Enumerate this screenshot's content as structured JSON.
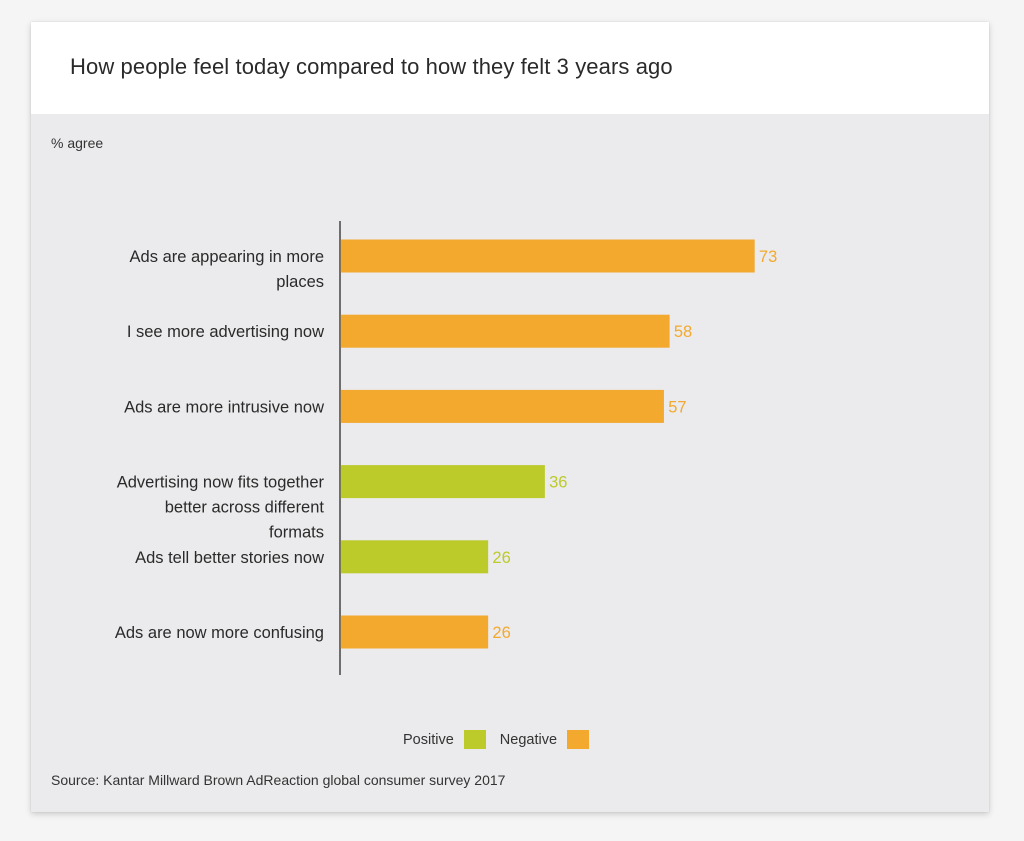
{
  "title": "How people feel today compared to how they felt 3 years ago",
  "unit_label": "% agree",
  "source": "Source: Kantar Millward Brown AdReaction global consumer survey 2017",
  "colors": {
    "positive": "#bcca2a",
    "negative": "#f3a92e"
  },
  "legend": [
    {
      "label": "Positive",
      "key": "positive"
    },
    {
      "label": "Negative",
      "key": "negative"
    }
  ],
  "chart_data": {
    "type": "bar",
    "orientation": "horizontal",
    "categories": [
      [
        "Ads are appearing in more",
        "places"
      ],
      [
        "I see more advertising now"
      ],
      [
        "Ads are more intrusive now"
      ],
      [
        "Advertising now fits together",
        "better across different",
        "formats"
      ],
      [
        "Ads tell better stories now"
      ],
      [
        "Ads are now more confusing"
      ]
    ],
    "values": [
      73,
      58,
      57,
      36,
      26,
      26
    ],
    "sentiment": [
      "negative",
      "negative",
      "negative",
      "positive",
      "positive",
      "negative"
    ],
    "xlim": [
      0,
      100
    ],
    "grid": false,
    "legend_position": "bottom-center"
  }
}
